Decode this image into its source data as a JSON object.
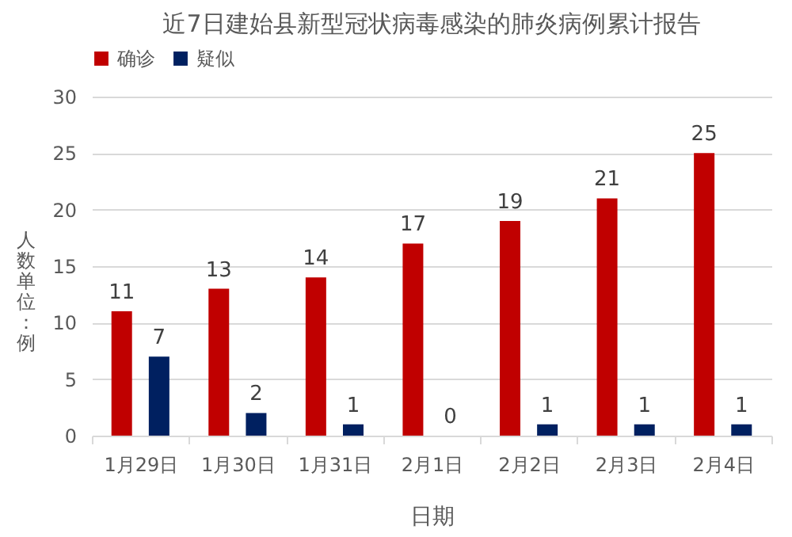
{
  "chart_data": {
    "type": "bar",
    "title": "近7日建始县新型冠状病毒感染的肺炎病例累计报告",
    "xlabel": "日期",
    "ylabel": "人数单位：例",
    "categories": [
      "1月29日",
      "1月30日",
      "1月31日",
      "2月1日",
      "2月2日",
      "2月3日",
      "2月4日"
    ],
    "series": [
      {
        "name": "确诊",
        "color": "#c00000",
        "values": [
          11,
          13,
          14,
          17,
          19,
          21,
          25
        ]
      },
      {
        "name": "疑似",
        "color": "#002060",
        "values": [
          7,
          2,
          1,
          0,
          1,
          1,
          1
        ]
      }
    ],
    "ylim": [
      0,
      30
    ],
    "yticks": [
      0,
      5,
      10,
      15,
      20,
      25,
      30
    ],
    "grid": "y",
    "legend": "top",
    "data_labels": true
  }
}
